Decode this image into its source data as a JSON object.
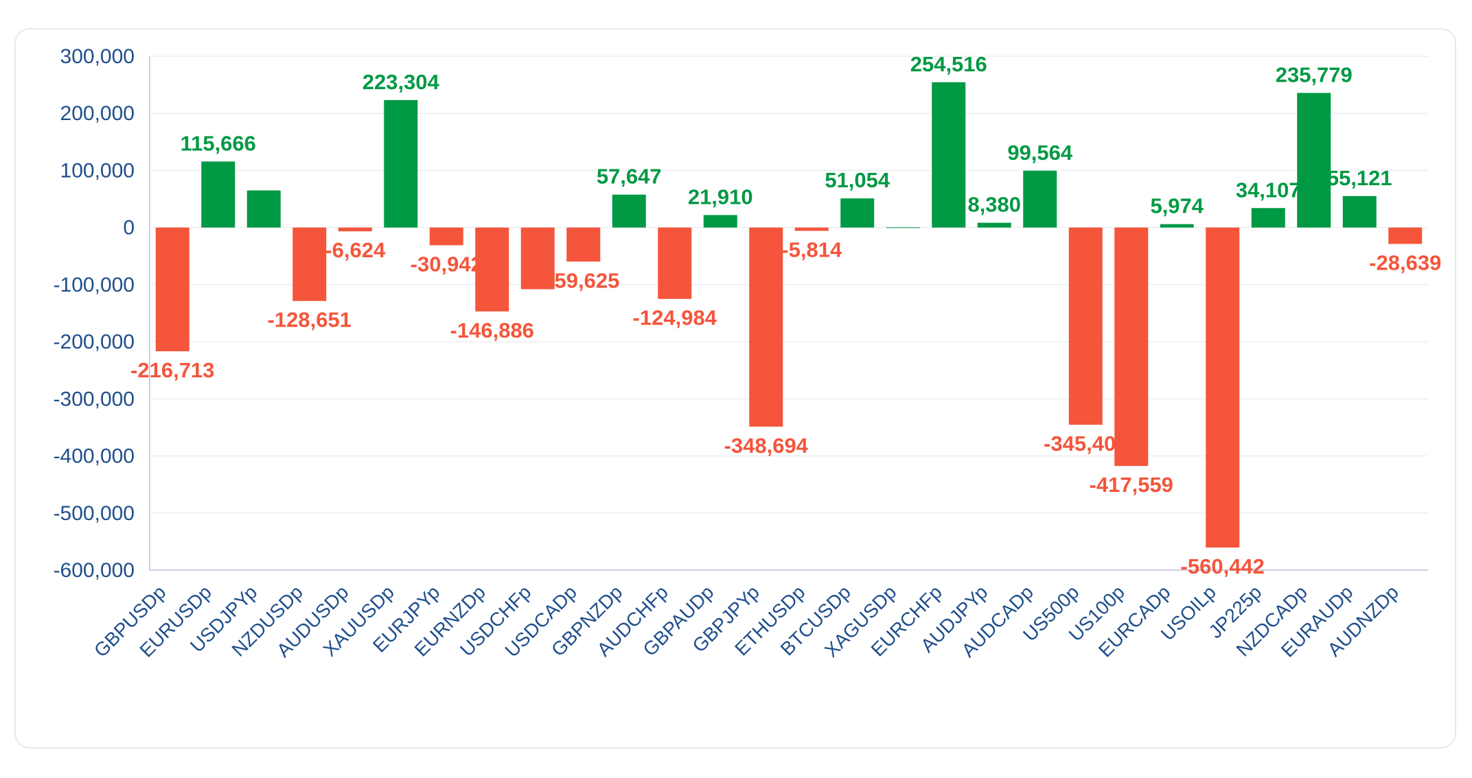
{
  "colors": {
    "positive": "#009944",
    "negative": "#f4553b",
    "axis_text": "#1f4e8c",
    "grid": "#eceef2",
    "axis_line": "#c9cde8"
  },
  "chart_data": {
    "type": "bar",
    "title": "",
    "xlabel": "",
    "ylabel": "",
    "ylim": [
      -600000,
      300000
    ],
    "yticks": [
      300000,
      200000,
      100000,
      0,
      -100000,
      -200000,
      -300000,
      -400000,
      -500000,
      -600000
    ],
    "ytick_labels": [
      "300,000",
      "200,000",
      "100,000",
      "0",
      "-100,000",
      "-200,000",
      "-300,000",
      "-400,000",
      "-500,000",
      "-600,000"
    ],
    "grid": true,
    "categories": [
      "GBPUSDp",
      "EURUSDp",
      "USDJPYp",
      "NZDUSDp",
      "AUDUSDp",
      "XAUUSDp",
      "EURJPYp",
      "EURNZDp",
      "USDCHFp",
      "USDCADp",
      "GBPNZDp",
      "AUDCHFp",
      "GBPAUDp",
      "GBPJPYp",
      "ETHUSDp",
      "BTCUSDp",
      "XAGUSDp",
      "EURCHFp",
      "AUDJPYp",
      "AUDCADp",
      "US500p",
      "US100p",
      "EURCADp",
      "USOILp",
      "JP225p",
      "NZDCADp",
      "EURAUDp",
      "AUDNZDp"
    ],
    "values": [
      -216713,
      115666,
      65000,
      -128651,
      -6624,
      223304,
      -30942,
      -146886,
      -108000,
      -59625,
      57647,
      -124984,
      21910,
      -348694,
      -5814,
      51054,
      500,
      254516,
      8380,
      99564,
      -345400,
      -417559,
      5974,
      -560442,
      34107,
      235779,
      55121,
      -28639
    ],
    "data_labels": [
      "-216,713",
      "115,666",
      "",
      "-128,651",
      "-6,624",
      "223,304",
      "-30,942",
      "-146,886",
      "",
      "-59,625",
      "57,647",
      "-124,984",
      "21,910",
      "-348,694",
      "-5,814",
      "51,054",
      "",
      "254,516",
      "8,380",
      "99,564",
      "-345,400",
      "-417,559",
      "5,974",
      "-560,442",
      "34,107",
      "235,779",
      "55,121",
      "-28,639"
    ]
  }
}
